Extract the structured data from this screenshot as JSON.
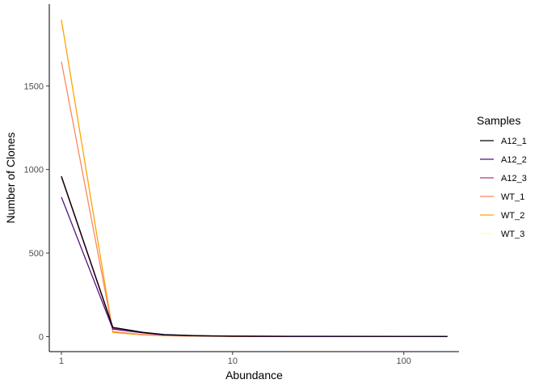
{
  "chart_data": {
    "type": "line",
    "title": "",
    "xlabel": "Abundance",
    "ylabel": "Number of Clones",
    "x_scale": "log10",
    "xlim": [
      0.85,
      210
    ],
    "ylim": [
      -90,
      1990
    ],
    "x_ticks": [
      1,
      10,
      100
    ],
    "x_tick_labels": [
      "1",
      "10",
      "100"
    ],
    "y_ticks": [
      0,
      500,
      1000,
      1500
    ],
    "y_tick_labels": [
      "0",
      "500",
      "1000",
      "1500"
    ],
    "grid": false,
    "legend_title": "Samples",
    "legend_position": "right",
    "series": [
      {
        "name": "A12_1",
        "color": "#000004",
        "x": [
          1,
          2,
          3,
          4,
          6,
          10,
          21,
          180
        ],
        "y": [
          960,
          55,
          25,
          12,
          6,
          3,
          2,
          1
        ]
      },
      {
        "name": "A12_2",
        "color": "#51127C",
        "x": [
          1,
          2,
          3,
          4,
          6,
          10,
          21,
          180
        ],
        "y": [
          835,
          45,
          22,
          10,
          5,
          2,
          1,
          1
        ]
      },
      {
        "name": "A12_3",
        "color": "#B63679",
        "x": [
          1,
          2,
          3,
          4,
          6,
          10,
          21,
          180
        ],
        "y": [
          955,
          50,
          24,
          11,
          5,
          2,
          1,
          1
        ]
      },
      {
        "name": "WT_1",
        "color": "#FB8861",
        "x": [
          1,
          2,
          3,
          4,
          6,
          10,
          21
        ],
        "y": [
          1645,
          30,
          12,
          6,
          3,
          2,
          1
        ]
      },
      {
        "name": "WT_2",
        "color": "#FCA50A",
        "x": [
          1,
          2,
          3,
          4,
          6,
          10,
          21
        ],
        "y": [
          1895,
          25,
          10,
          5,
          3,
          1,
          1
        ]
      },
      {
        "name": "WT_3",
        "color": "#FCFDBF",
        "x": [
          1,
          2,
          3,
          4,
          6,
          10,
          21
        ],
        "y": [
          1900,
          22,
          9,
          4,
          2,
          1,
          1
        ]
      }
    ]
  }
}
